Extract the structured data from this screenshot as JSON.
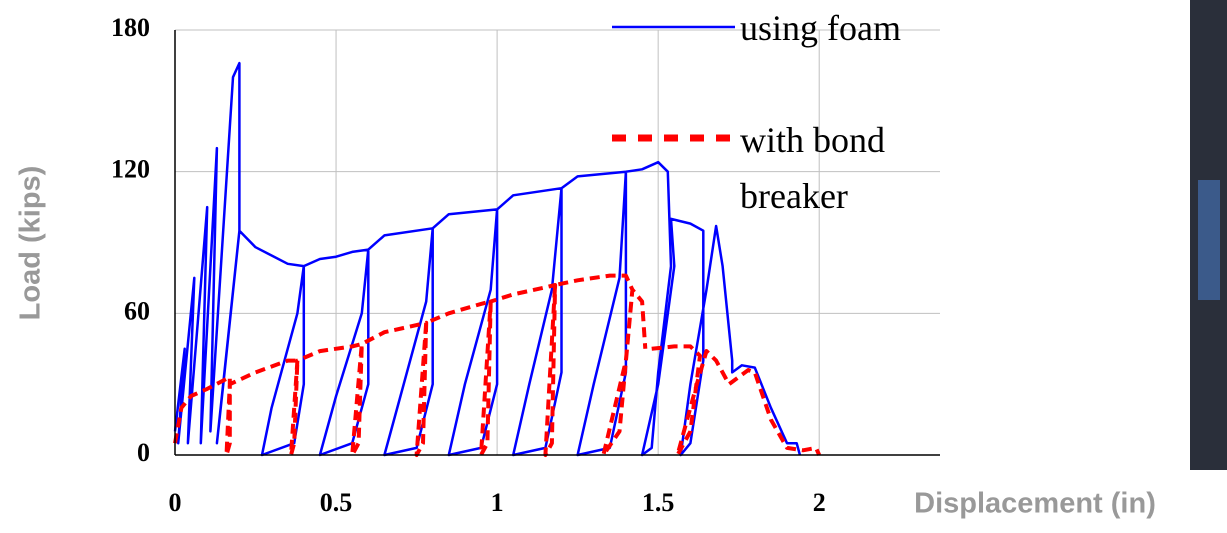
{
  "chart_data": {
    "type": "line",
    "x_label": "Displacement (in)",
    "y_label": "Load (kips)",
    "xlim": [
      0,
      2.375
    ],
    "ylim": [
      0,
      180
    ],
    "xticks": [
      0,
      0.5,
      1,
      1.5,
      2
    ],
    "yticks": [
      0,
      60,
      120,
      180
    ],
    "grid": true,
    "series": [
      {
        "name": "using foam",
        "color": "#0000ff",
        "dashed": false,
        "x": [
          0,
          0.03,
          0.01,
          0.06,
          0.04,
          0.1,
          0.08,
          0.13,
          0.11,
          0.18,
          0.2,
          0.2,
          0.15,
          0.13,
          0.2,
          0.25,
          0.35,
          0.4,
          0.4,
          0.37,
          0.27,
          0.3,
          0.38,
          0.4,
          0.45,
          0.5,
          0.55,
          0.6,
          0.6,
          0.55,
          0.45,
          0.5,
          0.58,
          0.6,
          0.65,
          0.8,
          0.8,
          0.75,
          0.65,
          0.7,
          0.78,
          0.8,
          0.85,
          1.0,
          1.0,
          0.95,
          0.85,
          0.9,
          0.98,
          1.0,
          1.05,
          1.2,
          1.2,
          1.15,
          1.05,
          1.1,
          1.17,
          1.2,
          1.25,
          1.4,
          1.4,
          1.35,
          1.25,
          1.3,
          1.38,
          1.4,
          1.45,
          1.5,
          1.53,
          1.54,
          1.5,
          1.48,
          1.45,
          1.5,
          1.55,
          1.54,
          1.6,
          1.64,
          1.64,
          1.6,
          1.57,
          1.6,
          1.65,
          1.68,
          1.7,
          1.73,
          1.73,
          1.76,
          1.8,
          1.85,
          1.9,
          1.93,
          1.94
        ],
        "values": [
          10,
          45,
          5,
          75,
          5,
          105,
          5,
          130,
          10,
          160,
          166,
          95,
          30,
          5,
          95,
          88,
          81,
          80,
          30,
          5,
          0,
          20,
          60,
          80,
          83,
          84,
          86,
          87,
          30,
          5,
          0,
          25,
          60,
          87,
          93,
          96,
          30,
          3,
          0,
          25,
          65,
          96,
          102,
          104,
          30,
          3,
          0,
          30,
          70,
          104,
          110,
          113,
          35,
          3,
          0,
          30,
          70,
          113,
          118,
          120,
          35,
          3,
          0,
          30,
          75,
          120,
          121,
          124,
          120,
          80,
          35,
          3,
          0,
          30,
          80,
          100,
          98,
          95,
          40,
          5,
          0,
          30,
          70,
          97,
          80,
          40,
          35,
          38,
          37,
          20,
          5,
          5,
          0
        ]
      },
      {
        "name": "with bond breaker",
        "color": "#ff0000",
        "dashed": true,
        "x": [
          0,
          0.02,
          0.05,
          0.1,
          0.17,
          0.17,
          0.16,
          0.17,
          0.25,
          0.35,
          0.38,
          0.37,
          0.36,
          0.38,
          0.45,
          0.55,
          0.58,
          0.57,
          0.55,
          0.58,
          0.65,
          0.75,
          0.78,
          0.77,
          0.75,
          0.78,
          0.85,
          0.95,
          0.98,
          0.97,
          0.95,
          0.98,
          1.05,
          1.15,
          1.18,
          1.17,
          1.15,
          1.18,
          1.25,
          1.35,
          1.4,
          1.42,
          1.38,
          1.33,
          1.4,
          1.42,
          1.45,
          1.46,
          1.47,
          1.48,
          1.55,
          1.6,
          1.63,
          1.6,
          1.56,
          1.62,
          1.65,
          1.68,
          1.72,
          1.78,
          1.8,
          1.85,
          1.9,
          1.95,
          1.99,
          2.0
        ],
        "values": [
          5,
          20,
          25,
          28,
          33,
          5,
          0,
          30,
          35,
          40,
          40,
          5,
          0,
          40,
          44,
          46,
          47,
          5,
          0,
          47,
          52,
          55,
          56,
          5,
          0,
          56,
          60,
          64,
          65,
          5,
          0,
          65,
          68,
          71,
          72,
          5,
          0,
          72,
          74,
          76,
          76,
          70,
          10,
          0,
          40,
          70,
          65,
          45,
          null,
          45,
          46,
          46,
          42,
          10,
          0,
          30,
          44,
          40,
          30,
          36,
          35,
          15,
          3,
          2,
          3,
          0
        ]
      }
    ]
  }
}
